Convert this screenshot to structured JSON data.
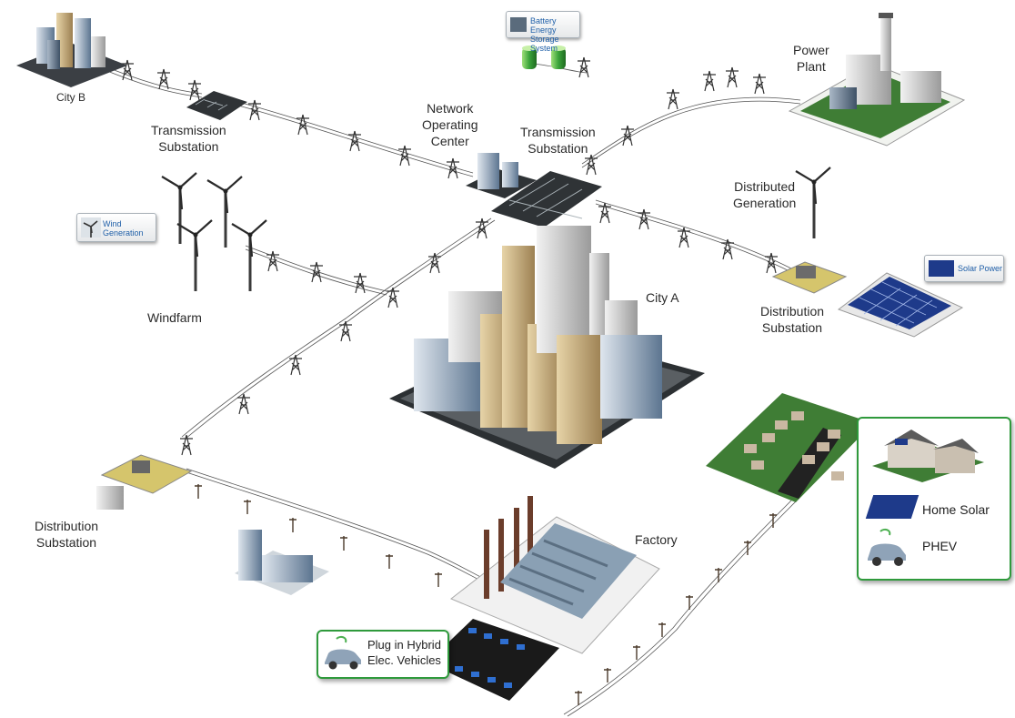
{
  "labels": {
    "city_b": "City B",
    "transmission_substation_left": [
      "Transmission",
      "Substation"
    ],
    "network_operating_center": [
      "Network",
      "Operating",
      "Center"
    ],
    "transmission_substation_center": [
      "Transmission",
      "Substation"
    ],
    "power_plant": [
      "Power",
      "Plant"
    ],
    "distributed_generation": [
      "Distributed",
      "Generation"
    ],
    "windfarm": "Windfarm",
    "city_a": "City A",
    "distribution_substation_right": [
      "Distribution",
      "Substation"
    ],
    "distribution_substation_left": [
      "Distribution",
      "Substation"
    ],
    "factory": "Factory"
  },
  "badges": {
    "battery": [
      "Battery Energy",
      "Storage System"
    ],
    "wind": [
      "Wind",
      "Generation"
    ],
    "solar": "Solar Power"
  },
  "home_callout": {
    "home_solar": "Home Solar",
    "phev": "PHEV"
  },
  "phev_callout": [
    "Plug in Hybrid",
    "Elec. Vehicles"
  ],
  "colors": {
    "callout_border": "#2f9a3c",
    "badge_text": "#1f5fa8",
    "lines": "#444444",
    "solar_panel": "#1e3a8a",
    "grass": "#3f7d35"
  }
}
